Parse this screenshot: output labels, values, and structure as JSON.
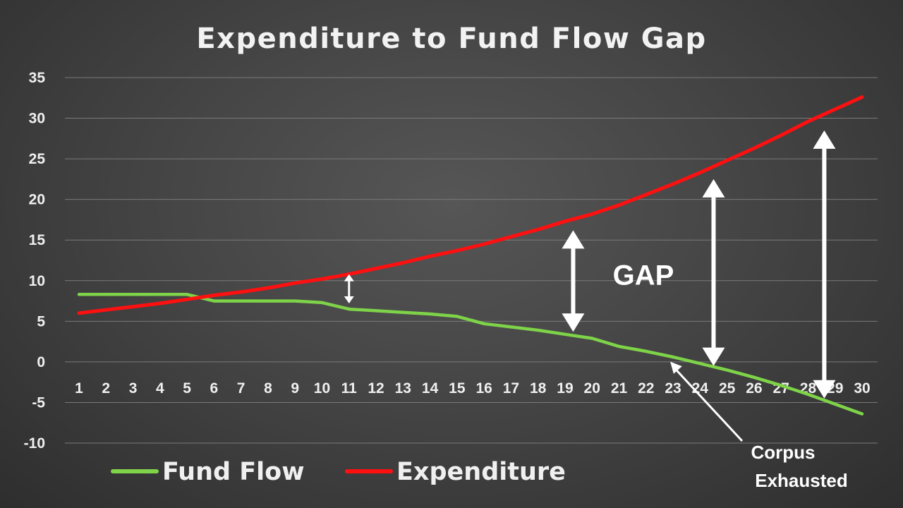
{
  "chart_data": {
    "type": "line",
    "title": "Expenditure to Fund Flow Gap",
    "xlabel": "",
    "ylabel": "",
    "x": [
      1,
      2,
      3,
      4,
      5,
      6,
      7,
      8,
      9,
      10,
      11,
      12,
      13,
      14,
      15,
      16,
      17,
      18,
      19,
      20,
      21,
      22,
      23,
      24,
      25,
      26,
      27,
      28,
      29,
      30
    ],
    "ylim": [
      -10,
      35
    ],
    "yticks": [
      35,
      30,
      25,
      20,
      15,
      10,
      5,
      0,
      -5,
      -10
    ],
    "grid": true,
    "legend_position": "bottom",
    "series": [
      {
        "name": "Fund Flow",
        "color": "#7ed348",
        "values": [
          8.3,
          8.3,
          8.3,
          8.3,
          8.3,
          7.5,
          7.5,
          7.5,
          7.5,
          7.3,
          6.5,
          6.3,
          6.1,
          5.9,
          5.6,
          4.7,
          4.3,
          3.9,
          3.4,
          2.9,
          1.9,
          1.3,
          0.6,
          -0.2,
          -1.0,
          -1.9,
          -2.9,
          -4.0,
          -5.2,
          -6.4
        ]
      },
      {
        "name": "Expenditure",
        "color": "#ff1010",
        "values": [
          6.0,
          6.4,
          6.8,
          7.2,
          7.7,
          8.2,
          8.6,
          9.1,
          9.7,
          10.2,
          10.8,
          11.5,
          12.2,
          13.0,
          13.7,
          14.5,
          15.4,
          16.3,
          17.3,
          18.2,
          19.3,
          20.6,
          21.9,
          23.3,
          24.8,
          26.3,
          27.9,
          29.6,
          31.1,
          32.6
        ]
      }
    ],
    "annotations": [
      {
        "type": "double-arrow",
        "x": 11,
        "y_from": 7.2,
        "y_to": 10.8
      },
      {
        "type": "double-arrow",
        "x": 19.3,
        "y_from": 3.7,
        "y_to": 16.2
      },
      {
        "type": "double-arrow",
        "x": 24.5,
        "y_from": -0.5,
        "y_to": 22.5
      },
      {
        "type": "double-arrow",
        "x": 28.6,
        "y_from": -4.5,
        "y_to": 28.5
      },
      {
        "type": "text",
        "text": "GAP",
        "x": 21.9,
        "y": 9.5
      },
      {
        "type": "arrow",
        "text": "Corpus Exhausted",
        "x": 23.0,
        "y": 0.2
      }
    ]
  }
}
